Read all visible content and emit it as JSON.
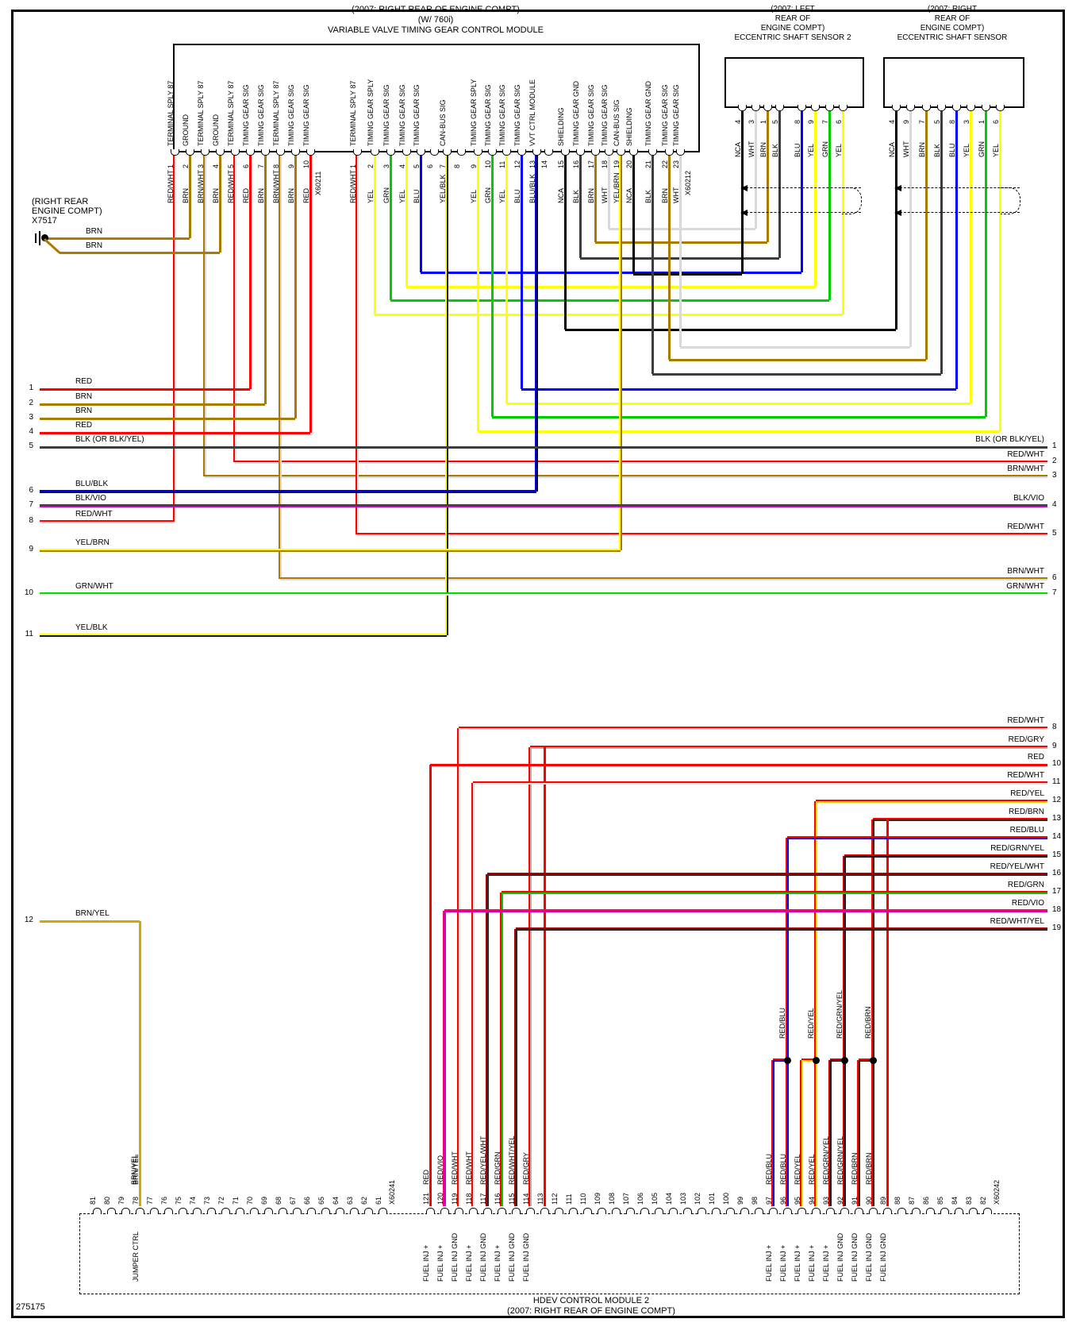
{
  "page": {
    "drawing_number": "275175"
  },
  "colors": {
    "RED": [
      "#ff0000"
    ],
    "BRN": [
      "#ab7a00"
    ],
    "BRN/WHT": [
      "#ab7a00",
      "#d9d9d9"
    ],
    "RED/WHT": [
      "#ff0000",
      "#d9d9d9"
    ],
    "YEL": [
      "#ffff00"
    ],
    "GRN": [
      "#00cc00"
    ],
    "BLU": [
      "#0000ff"
    ],
    "BLK": [
      "#3d3d3d"
    ],
    "BLK (OR BLK/YEL)": [
      "#3d3d3d"
    ],
    "WHT": [
      "#d9d9d9"
    ],
    "NCA": [
      "#000000"
    ],
    "YEL/BLK": [
      "#ffff00",
      "#1a1a1a"
    ],
    "BLU/BLK": [
      "#0000ee",
      "#000044"
    ],
    "YEL/BRN": [
      "#ffff00",
      "#ab7a00"
    ],
    "BLK/VIO": [
      "#3d3d3d",
      "#cc00cc"
    ],
    "GRN/WHT": [
      "#00dd00",
      "#e8e8e8"
    ],
    "BRN/YEL": [
      "#d0a800"
    ],
    "RED/GRY": [
      "#ff0000",
      "#b3b3b3"
    ],
    "RED/VIO": [
      "#ff0066",
      "#cc00cc"
    ],
    "RED/YEL": [
      "#ff0000",
      "#ffd700"
    ],
    "RED/BRN": [
      "#ff0000",
      "#4d1f00"
    ],
    "RED/BLU": [
      "#ff0000",
      "#0000ff"
    ],
    "RED/GRN": [
      "#ff0000",
      "#00cc00"
    ],
    "RED/GRN/YEL": [
      "#cc0000",
      "#1a1a1a"
    ],
    "RED/YEL/WHT": [
      "#aa0000",
      "#262626"
    ],
    "RED/WHT/YEL": [
      "#aa0000",
      "#262626"
    ]
  },
  "vvt_module": {
    "title_lines": [
      "(2007: RIGHT REAR OF ENGINE COMPT)",
      "(W/ 760i)",
      "VARIABLE VALVE TIMING GEAR CONTROL MODULE"
    ],
    "connectors": [
      {
        "id": "X60211",
        "pins": [
          {
            "n": "1",
            "fn": "TERMINAL SPLY 87",
            "wire": "RED/WHT"
          },
          {
            "n": "2",
            "fn": "GROUND",
            "wire": "BRN"
          },
          {
            "n": "3",
            "fn": "TERMINAL SPLY 87",
            "wire": "BRN/WHT"
          },
          {
            "n": "4",
            "fn": "GROUND",
            "wire": "BRN"
          },
          {
            "n": "5",
            "fn": "TERMINAL SPLY 87",
            "wire": "RED/WHT"
          },
          {
            "n": "6",
            "fn": "TIMING GEAR SIG",
            "wire": "RED"
          },
          {
            "n": "7",
            "fn": "TIMING GEAR SIG",
            "wire": "BRN"
          },
          {
            "n": "8",
            "fn": "TERMINAL SPLY 87",
            "wire": "BRN/WHT"
          },
          {
            "n": "9",
            "fn": "TIMING GEAR SIG",
            "wire": "BRN"
          },
          {
            "n": "10",
            "fn": "TIMING GEAR SIG",
            "wire": "RED"
          }
        ]
      },
      {
        "id": "X60212",
        "pins": [
          {
            "n": "1",
            "fn": "TERMINAL SPLY 87",
            "wire": "RED/WHT"
          },
          {
            "n": "2",
            "fn": "TIMING GEAR SPLY",
            "wire": "YEL"
          },
          {
            "n": "3",
            "fn": "TIMING GEAR SIG",
            "wire": "GRN"
          },
          {
            "n": "4",
            "fn": "TIMING GEAR SIG",
            "wire": "YEL"
          },
          {
            "n": "5",
            "fn": "TIMING GEAR SIG",
            "wire": "BLU"
          },
          {
            "n": "6",
            "fn": "",
            "wire": ""
          },
          {
            "n": "7",
            "fn": "CAN-BUS SIG",
            "wire": "YEL/BLK"
          },
          {
            "n": "8",
            "fn": "",
            "wire": ""
          },
          {
            "n": "9",
            "fn": "TIMING GEAR SPLY",
            "wire": "YEL"
          },
          {
            "n": "10",
            "fn": "TIMING GEAR SIG",
            "wire": "GRN"
          },
          {
            "n": "11",
            "fn": "TIMING GEAR SIG",
            "wire": "YEL"
          },
          {
            "n": "12",
            "fn": "TIMING GEAR SIG",
            "wire": "BLU"
          },
          {
            "n": "13",
            "fn": "VVT CTRL MODULE",
            "wire": "BLU/BLK"
          },
          {
            "n": "14",
            "fn": "",
            "wire": ""
          },
          {
            "n": "15",
            "fn": "SHIELDING",
            "wire": "NCA"
          },
          {
            "n": "16",
            "fn": "TIMING GEAR GND",
            "wire": "BLK"
          },
          {
            "n": "17",
            "fn": "TIMING GEAR SIG",
            "wire": "BRN"
          },
          {
            "n": "18",
            "fn": "TIMING GEAR SIG",
            "wire": "WHT"
          },
          {
            "n": "19",
            "fn": "CAN-BUS SIG",
            "wire": "YEL/BRN"
          },
          {
            "n": "20",
            "fn": "SHIELDING",
            "wire": "NCA"
          },
          {
            "n": "21",
            "fn": "TIMING GEAR GND",
            "wire": "BLK"
          },
          {
            "n": "22",
            "fn": "TIMING GEAR SIG",
            "wire": "BRN"
          },
          {
            "n": "23",
            "fn": "TIMING GEAR SIG",
            "wire": "WHT"
          }
        ]
      }
    ]
  },
  "sensor2": {
    "title_lines": [
      "(2007: LEFT",
      "REAR OF",
      "ENGINE COMPT)",
      "ECCENTRIC SHAFT SENSOR 2"
    ],
    "pins": [
      {
        "n": "4",
        "wire": "NCA"
      },
      {
        "n": "3",
        "wire": "WHT"
      },
      {
        "n": "1",
        "wire": "BRN"
      },
      {
        "n": "5",
        "wire": "BLK"
      },
      {
        "n": "8",
        "wire": "BLU"
      },
      {
        "n": "9",
        "wire": "YEL"
      },
      {
        "n": "7",
        "wire": "GRN"
      },
      {
        "n": "6",
        "wire": "YEL"
      }
    ]
  },
  "sensor1": {
    "title_lines": [
      "(2007: RIGHT",
      "REAR OF",
      "ENGINE COMPT)",
      "ECCENTRIC SHAFT SENSOR"
    ],
    "pins": [
      {
        "n": "4",
        "wire": "NCA"
      },
      {
        "n": "9",
        "wire": "WHT"
      },
      {
        "n": "7",
        "wire": "BRN"
      },
      {
        "n": "5",
        "wire": "BLK"
      },
      {
        "n": "8",
        "wire": "BLU"
      },
      {
        "n": "3",
        "wire": "YEL"
      },
      {
        "n": "1",
        "wire": "GRN"
      },
      {
        "n": "6",
        "wire": "YEL"
      }
    ]
  },
  "x7517": {
    "lines": [
      "(RIGHT REAR",
      "ENGINE COMPT)",
      "X7517"
    ],
    "wire_labels": [
      "BRN",
      "BRN"
    ]
  },
  "left_wires": [
    {
      "n": "1",
      "label": "RED"
    },
    {
      "n": "2",
      "label": "BRN"
    },
    {
      "n": "3",
      "label": "BRN"
    },
    {
      "n": "4",
      "label": "RED"
    },
    {
      "n": "5",
      "label": "BLK (OR BLK/YEL)"
    },
    {
      "n": "6",
      "label": "BLU/BLK"
    },
    {
      "n": "7",
      "label": "BLK/VIO"
    },
    {
      "n": "8",
      "label": "RED/WHT"
    },
    {
      "n": "9",
      "label": "YEL/BRN"
    },
    {
      "n": "10",
      "label": "GRN/WHT"
    },
    {
      "n": "11",
      "label": "YEL/BLK"
    },
    {
      "n": "12",
      "label": "BRN/YEL"
    }
  ],
  "right_wires": [
    {
      "n": "1",
      "label": "BLK (OR BLK/YEL)"
    },
    {
      "n": "2",
      "label": "RED/WHT"
    },
    {
      "n": "3",
      "label": "BRN/WHT"
    },
    {
      "n": "4",
      "label": "BLK/VIO"
    },
    {
      "n": "5",
      "label": "RED/WHT"
    },
    {
      "n": "6",
      "label": "BRN/WHT"
    },
    {
      "n": "7",
      "label": "GRN/WHT"
    },
    {
      "n": "8",
      "label": "RED/WHT"
    },
    {
      "n": "9",
      "label": "RED/GRY"
    },
    {
      "n": "10",
      "label": "RED"
    },
    {
      "n": "11",
      "label": "RED/WHT"
    },
    {
      "n": "12",
      "label": "RED/YEL"
    },
    {
      "n": "13",
      "label": "RED/BRN"
    },
    {
      "n": "14",
      "label": "RED/BLU"
    },
    {
      "n": "15",
      "label": "RED/GRN/YEL"
    },
    {
      "n": "16",
      "label": "RED/YEL/WHT"
    },
    {
      "n": "17",
      "label": "RED/GRN"
    },
    {
      "n": "18",
      "label": "RED/VIO"
    },
    {
      "n": "19",
      "label": "RED/WHT/YEL"
    }
  ],
  "junction_labels": [
    "RED/BLU",
    "RED/YEL",
    "RED/GRN/YEL",
    "RED/BRN"
  ],
  "hdev_module": {
    "title_lines": [
      "HDEV CONTROL MODULE 2",
      "(2007: RIGHT REAR OF ENGINE COMPT)"
    ],
    "left_connector": "X60241",
    "right_connector": "X60242",
    "vertical_wire_label": "BRN/YEL",
    "pins": [
      {
        "n": "81"
      },
      {
        "n": "80"
      },
      {
        "n": "79"
      },
      {
        "n": "78",
        "wire": "BRN/YEL",
        "fn": "JUMPER CTRL"
      },
      {
        "n": "77"
      },
      {
        "n": "76"
      },
      {
        "n": "75"
      },
      {
        "n": "74"
      },
      {
        "n": "73"
      },
      {
        "n": "72"
      },
      {
        "n": "71"
      },
      {
        "n": "70"
      },
      {
        "n": "69"
      },
      {
        "n": "68"
      },
      {
        "n": "67"
      },
      {
        "n": "66"
      },
      {
        "n": "65"
      },
      {
        "n": "64"
      },
      {
        "n": "63"
      },
      {
        "n": "62"
      },
      {
        "n": "61"
      },
      {
        "n": "121",
        "wire": "RED",
        "fn": "FUEL INJ +"
      },
      {
        "n": "120",
        "wire": "RED/VIO",
        "fn": "FUEL INJ +"
      },
      {
        "n": "119",
        "wire": "RED/WHT",
        "fn": "FUEL INJ GND"
      },
      {
        "n": "118",
        "wire": "RED/WHT",
        "fn": "FUEL INJ +"
      },
      {
        "n": "117",
        "wire": "RED/YEL/WHT",
        "fn": "FUEL INJ GND"
      },
      {
        "n": "116",
        "wire": "RED/GRN",
        "fn": "FUEL INJ +"
      },
      {
        "n": "115",
        "wire": "RED/WHT/YEL",
        "fn": "FUEL INJ GND"
      },
      {
        "n": "114",
        "wire": "RED/GRY",
        "fn": "FUEL INJ GND"
      },
      {
        "n": "113"
      },
      {
        "n": "112"
      },
      {
        "n": "111"
      },
      {
        "n": "110"
      },
      {
        "n": "109"
      },
      {
        "n": "108"
      },
      {
        "n": "107"
      },
      {
        "n": "106"
      },
      {
        "n": "105"
      },
      {
        "n": "104"
      },
      {
        "n": "103"
      },
      {
        "n": "102"
      },
      {
        "n": "101"
      },
      {
        "n": "100"
      },
      {
        "n": "99"
      },
      {
        "n": "98"
      },
      {
        "n": "97",
        "wire": "RED/BLU",
        "fn": "FUEL INJ +"
      },
      {
        "n": "96",
        "wire": "RED/BLU",
        "fn": "FUEL INJ +"
      },
      {
        "n": "95",
        "wire": "RED/YEL",
        "fn": "FUEL INJ +"
      },
      {
        "n": "94",
        "wire": "RED/YEL",
        "fn": "FUEL INJ +"
      },
      {
        "n": "93",
        "wire": "RED/GRN/YEL",
        "fn": "FUEL INJ +"
      },
      {
        "n": "92",
        "wire": "RED/GRN/YEL",
        "fn": "FUEL INJ GND"
      },
      {
        "n": "91",
        "wire": "RED/BRN",
        "fn": "FUEL INJ GND"
      },
      {
        "n": "90",
        "wire": "RED/BRN",
        "fn": "FUEL INJ GND"
      },
      {
        "n": "89",
        "fn": "FUEL INJ GND"
      },
      {
        "n": "88"
      },
      {
        "n": "87"
      },
      {
        "n": "86"
      },
      {
        "n": "85"
      },
      {
        "n": "84"
      },
      {
        "n": "83"
      },
      {
        "n": "82"
      }
    ]
  }
}
